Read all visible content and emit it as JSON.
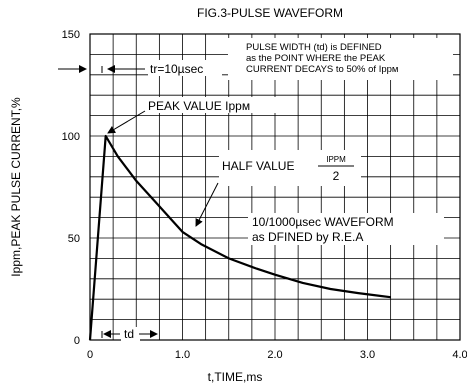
{
  "chart_data": {
    "type": "line",
    "title": "FIG.3-PULSE WAVEFORM",
    "xlabel": "t,TIME,ms",
    "ylabel_main": "PEAK PULSE CURRENT,%",
    "ylabel_prefix": "Ippm,",
    "xlim": [
      0,
      4.0
    ],
    "ylim": [
      0,
      150
    ],
    "x_ticks": [
      0,
      1.0,
      2.0,
      3.0,
      4.0
    ],
    "x_tick_labels": [
      "0",
      "1.0",
      "2.0",
      "3.0",
      "4.0"
    ],
    "y_ticks": [
      0,
      50,
      100,
      150
    ],
    "y_tick_labels": [
      "0",
      "50",
      "100",
      "150"
    ],
    "grid": true,
    "series": [
      {
        "values": [
          {
            "x": 0.0,
            "y": 0
          },
          {
            "x": 0.17,
            "y": 100
          },
          {
            "x": 0.3,
            "y": 90
          },
          {
            "x": 0.5,
            "y": 78
          },
          {
            "x": 0.7,
            "y": 68
          },
          {
            "x": 0.9,
            "y": 58
          },
          {
            "x": 1.0,
            "y": 53
          },
          {
            "x": 1.2,
            "y": 47
          },
          {
            "x": 1.5,
            "y": 40
          },
          {
            "x": 1.8,
            "y": 35
          },
          {
            "x": 2.0,
            "y": 32
          },
          {
            "x": 2.3,
            "y": 28
          },
          {
            "x": 2.6,
            "y": 25
          },
          {
            "x": 2.9,
            "y": 23
          },
          {
            "x": 3.25,
            "y": 21
          }
        ]
      }
    ],
    "annotations": {
      "pulse_width_line1": "PULSE WIDTH (td) is DEFINED",
      "pulse_width_line2": "as the POINT WHERE the PEAK",
      "pulse_width_line3": "CURRENT DECAYS to 50% of Ippм",
      "rise_time": "tr=10µsec",
      "peak_value": "PEAK VALUE Ippм",
      "half_value": "HALF VALUE",
      "half_fraction_numerator": "IPPM",
      "half_fraction_denominator": "2",
      "waveform_line1": "10/1000µsec WAVEFORM",
      "waveform_line2": "as DFINED by R.E.A",
      "td": "td"
    }
  }
}
